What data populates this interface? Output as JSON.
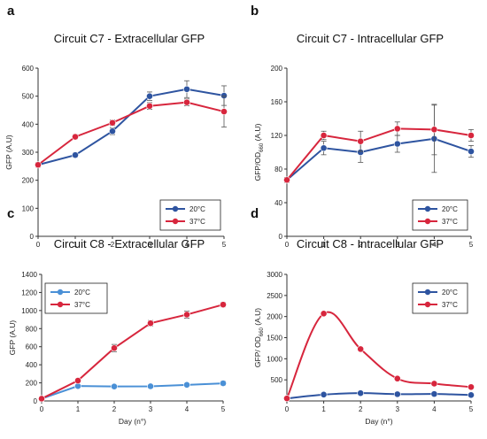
{
  "chart_data": [
    {
      "panel": "a",
      "type": "line",
      "title": "Circuit C7 - Extracellular GFP",
      "xlabel": "",
      "ylabel": "GFP (A.U)",
      "ylabel_sub": "",
      "x": [
        0,
        1,
        2,
        3,
        4,
        5
      ],
      "xlim": [
        0,
        5
      ],
      "ylim": [
        0,
        600
      ],
      "yticks": [
        0,
        100,
        200,
        300,
        400,
        500,
        600
      ],
      "legend_position": "bottom-right",
      "series": [
        {
          "name": "20°C",
          "color": "#2e54a0",
          "values": [
            255,
            290,
            375,
            500,
            525,
            502
          ],
          "errors": [
            8,
            8,
            12,
            15,
            30,
            35
          ]
        },
        {
          "name": "37°C",
          "color": "#d7263d",
          "values": [
            255,
            355,
            405,
            465,
            478,
            445
          ],
          "errors": [
            8,
            8,
            10,
            12,
            12,
            55
          ]
        }
      ]
    },
    {
      "panel": "b",
      "type": "line",
      "title": "Circuit C7 - Intracellular GFP",
      "xlabel": "",
      "ylabel": "GFP/OD",
      "ylabel_sub": "660",
      "ylabel_suffix": " (A.U)",
      "x": [
        0,
        1,
        2,
        3,
        4,
        5
      ],
      "xlim": [
        0,
        5
      ],
      "ylim": [
        0,
        200
      ],
      "yticks": [
        0,
        40,
        80,
        120,
        160,
        200
      ],
      "legend_position": "bottom-right",
      "series": [
        {
          "name": "20°C",
          "color": "#2e54a0",
          "values": [
            67,
            105,
            100,
            110,
            116,
            101
          ],
          "errors": [
            3,
            8,
            12,
            10,
            40,
            7
          ]
        },
        {
          "name": "37°C",
          "color": "#d7263d",
          "values": [
            67,
            120,
            113,
            128,
            127,
            120
          ],
          "errors": [
            3,
            5,
            12,
            8,
            30,
            7
          ]
        }
      ]
    },
    {
      "panel": "c",
      "type": "line",
      "title": "Circuit C8 - Extracellular GFP",
      "xlabel": "Day (n°)",
      "ylabel": "GFP (A.U)",
      "ylabel_sub": "",
      "x": [
        0,
        1,
        2,
        3,
        4,
        5
      ],
      "xlim": [
        0,
        5
      ],
      "ylim": [
        0,
        1400
      ],
      "yticks": [
        0,
        200,
        400,
        600,
        800,
        1000,
        1200,
        1400
      ],
      "legend_position": "top-left",
      "series": [
        {
          "name": "20°C",
          "color": "#4a90d6",
          "values": [
            25,
            165,
            160,
            162,
            178,
            195
          ],
          "errors": [
            4,
            6,
            6,
            6,
            6,
            25
          ]
        },
        {
          "name": "37°C",
          "color": "#d7263d",
          "values": [
            25,
            225,
            585,
            860,
            955,
            1065
          ],
          "errors": [
            4,
            12,
            40,
            30,
            40,
            25
          ]
        }
      ]
    },
    {
      "panel": "d",
      "type": "line",
      "title": "Circuit C8 - Intracellular GFP",
      "xlabel": "Day (n°)",
      "ylabel": "GFP/ OD",
      "ylabel_sub": "660",
      "ylabel_suffix": " (A.U)",
      "x": [
        0,
        1,
        2,
        3,
        4,
        5
      ],
      "xlim": [
        0,
        5
      ],
      "ylim": [
        0,
        3000
      ],
      "yticks": [
        500,
        1000,
        1500,
        2000,
        2500,
        3000
      ],
      "legend_position": "top-right",
      "series": [
        {
          "name": "20°C",
          "color": "#2e54a0",
          "values": [
            60,
            150,
            185,
            160,
            165,
            140
          ],
          "errors": [
            0,
            0,
            0,
            0,
            0,
            0
          ]
        },
        {
          "name": "37°C",
          "color": "#d7263d",
          "values": [
            60,
            2070,
            1230,
            530,
            410,
            330
          ],
          "errors": [
            0,
            0,
            0,
            0,
            0,
            0
          ]
        }
      ]
    }
  ]
}
